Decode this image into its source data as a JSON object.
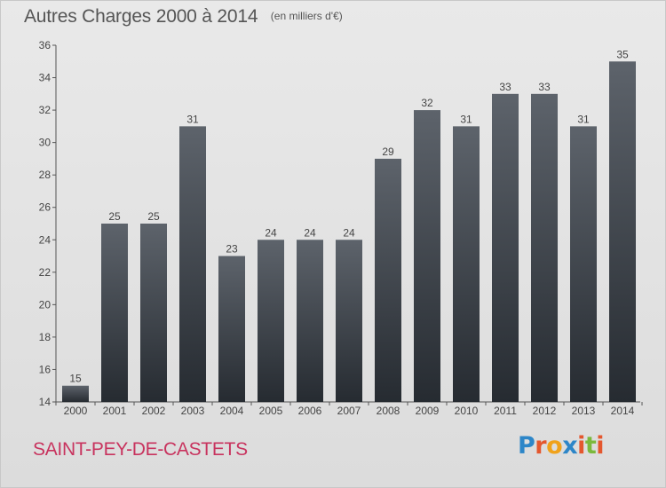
{
  "header": {
    "title": "Autres Charges 2000 à 2014",
    "subtitle": "(en milliers d'€)"
  },
  "footer": {
    "commune": "SAINT-PEY-DE-CASTETS",
    "logo_text": "Proxiti"
  },
  "colors": {
    "bar_top": "#5d636b",
    "bar_bottom": "#262b31",
    "commune_text": "#c8335e",
    "axis_text": "#444444"
  },
  "chart_data": {
    "type": "bar",
    "title": "Autres Charges 2000 à 2014",
    "subtitle": "(en milliers d'€)",
    "xlabel": "",
    "ylabel": "",
    "categories": [
      "2000",
      "2001",
      "2002",
      "2003",
      "2004",
      "2005",
      "2006",
      "2007",
      "2008",
      "2009",
      "2010",
      "2011",
      "2012",
      "2013",
      "2014"
    ],
    "values": [
      15,
      25,
      25,
      31,
      23,
      24,
      24,
      24,
      29,
      32,
      31,
      33,
      33,
      31,
      35
    ],
    "ylim": [
      14,
      36
    ],
    "yticks": [
      14,
      16,
      18,
      20,
      22,
      24,
      26,
      28,
      30,
      32,
      34,
      36
    ],
    "grid": false,
    "data_labels": true
  }
}
